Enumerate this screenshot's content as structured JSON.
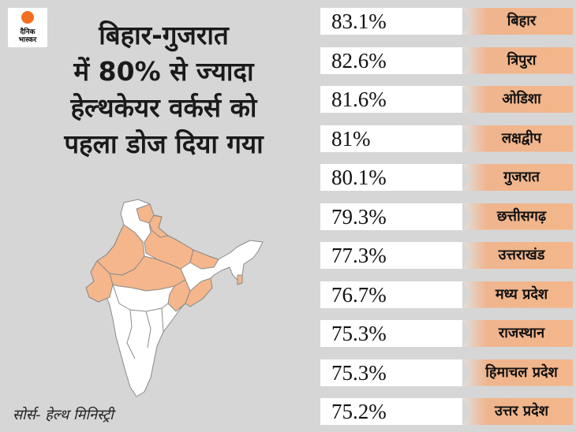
{
  "brand": {
    "line1": "दैनिक",
    "line2": "भास्कर",
    "sun_color": "#f26f21"
  },
  "title_lines": [
    "बिहार-गुजरात",
    "में 80% से ज्यादा",
    "हेल्थकेयर वर्कर्स को",
    "पहला डोज दिया गया"
  ],
  "source": "सोर्स- हेल्थ मिनिस्ट्री",
  "colors": {
    "background": "#d6d6d6",
    "highlight": "#f4b68a",
    "value_box": "#ffffff"
  },
  "chart_data": {
    "type": "bar",
    "categories": [
      "बिहार",
      "त्रिपुरा",
      "ओडिशा",
      "लक्षद्वीप",
      "गुजरात",
      "छत्तीसगढ़",
      "उत्तराखंड",
      "मध्य प्रदेश",
      "राजस्थान",
      "हिमाचल प्रदेश",
      "उत्तर प्रदेश"
    ],
    "values": [
      83.1,
      82.6,
      81.6,
      81,
      80.1,
      79.3,
      77.3,
      76.7,
      75.3,
      75.3,
      75.2
    ],
    "value_labels": [
      "83.1%",
      "82.6%",
      "81.6%",
      "81%",
      "80.1%",
      "79.3%",
      "77.3%",
      "76.7%",
      "75.3%",
      "75.3%",
      "75.2%"
    ],
    "title": "बिहार-गुजरात में 80% से ज्यादा हेल्थकेयर वर्कर्स को पहला डोज दिया गया"
  }
}
